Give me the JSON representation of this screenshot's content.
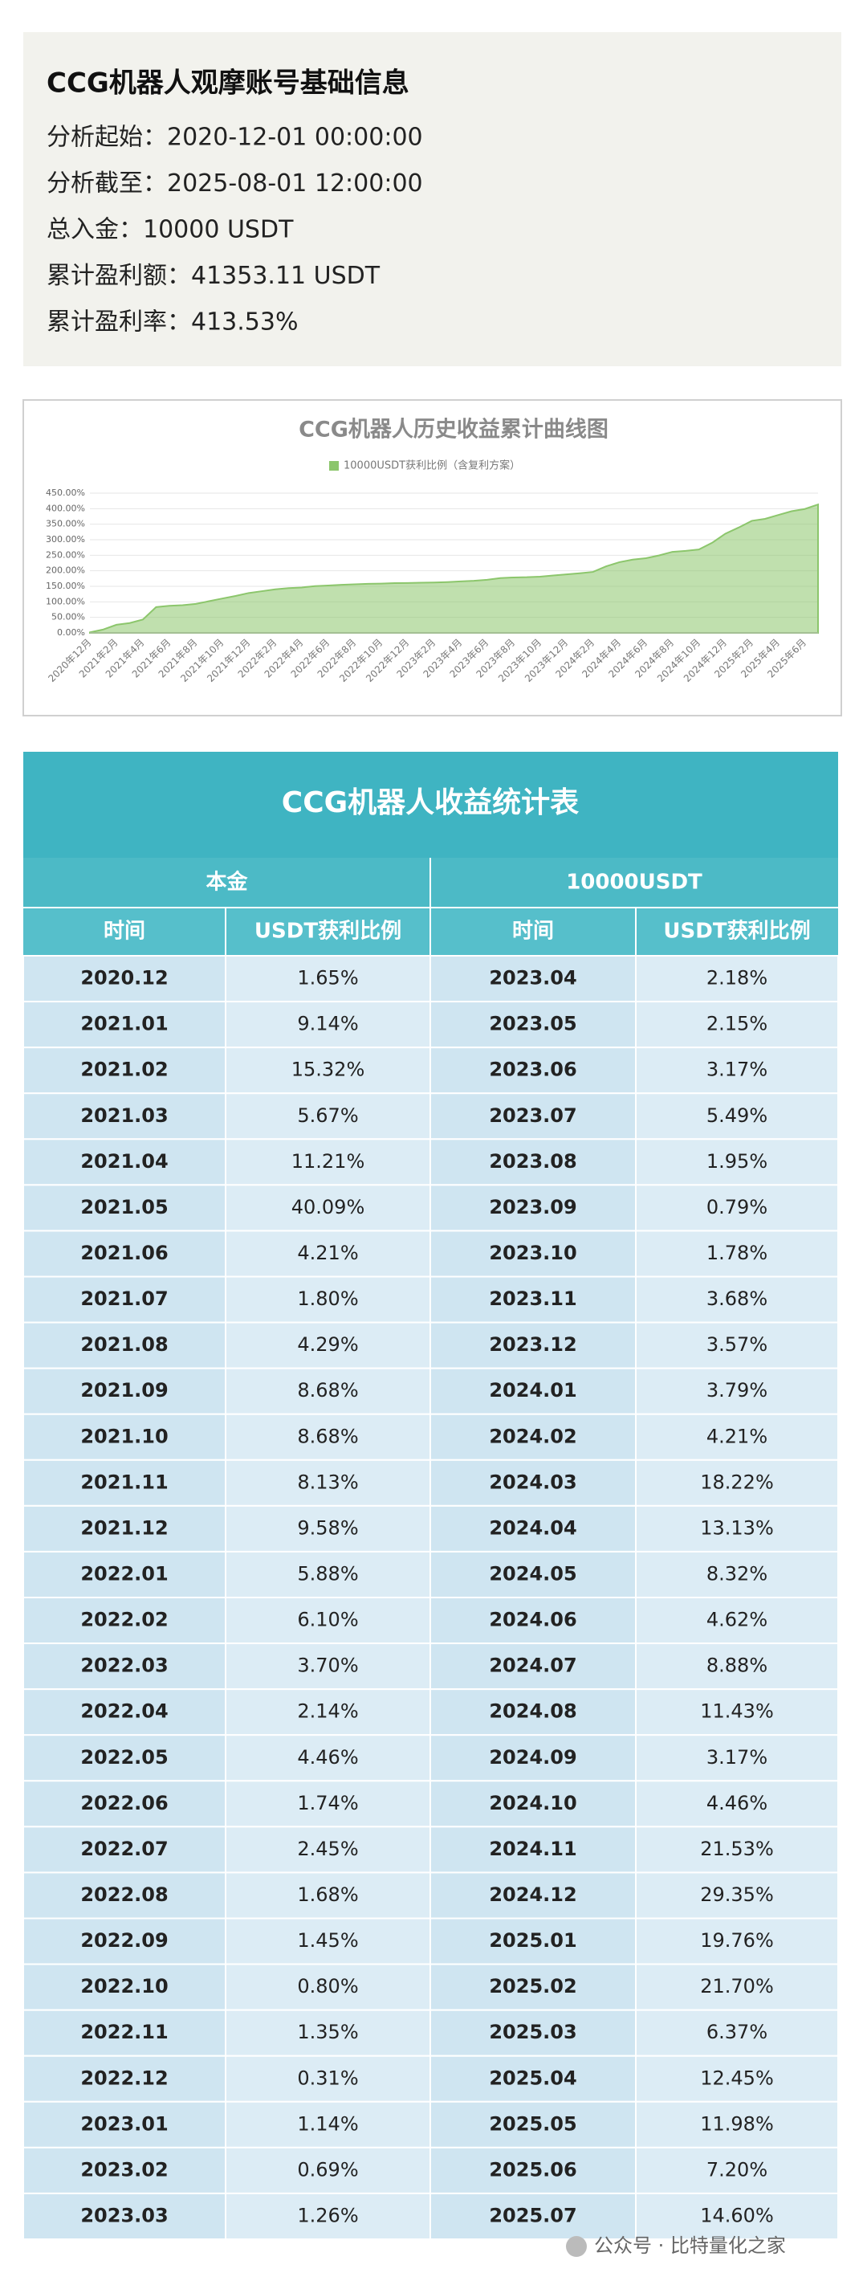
{
  "info": {
    "title": "CCG机器人观摩账号基础信息",
    "lines": [
      "分析起始：2020-12-01 00:00:00",
      "分析截至：2025-08-01 12:00:00",
      "总入金：10000 USDT",
      "累计盈利额：41353.11 USDT",
      "累计盈利率：413.53%"
    ]
  },
  "chart_data": {
    "type": "area",
    "title": "CCG机器人历史收益累计曲线图",
    "legend": "10000USDT获利比例（含复利方案）",
    "color": "#8cc66c",
    "categories": [
      "2020年12月",
      null,
      "2021年2月",
      null,
      "2021年4月",
      null,
      "2021年6月",
      null,
      "2021年8月",
      null,
      "2021年10月",
      null,
      "2021年12月",
      null,
      "2022年2月",
      null,
      "2022年4月",
      null,
      "2022年6月",
      null,
      "2022年8月",
      null,
      "2022年10月",
      null,
      "2022年12月",
      null,
      "2023年2月",
      null,
      "2023年4月",
      null,
      "2023年6月",
      null,
      "2023年8月",
      null,
      "2023年10月",
      null,
      "2023年12月",
      null,
      "2024年2月",
      null,
      "2024年4月",
      null,
      "2024年6月",
      null,
      "2024年8月",
      null,
      "2024年10月",
      null,
      "2024年12月",
      null,
      "2025年2月",
      null,
      "2025年4月",
      null,
      "2025年6月",
      null
    ],
    "values": [
      1.65,
      10.79,
      26.11,
      31.78,
      42.99,
      83.08,
      87.29,
      89.09,
      93.38,
      102.06,
      110.74,
      118.87,
      128.45,
      134.33,
      140.43,
      144.13,
      146.27,
      150.73,
      152.47,
      154.92,
      156.6,
      158.05,
      158.85,
      160.2,
      160.51,
      161.65,
      162.34,
      163.6,
      165.78,
      167.93,
      171.1,
      176.59,
      178.54,
      179.33,
      181.11,
      184.79,
      188.36,
      192.15,
      196.36,
      214.58,
      227.71,
      236.03,
      240.65,
      249.53,
      260.96,
      264.13,
      268.59,
      290.12,
      319.47,
      339.23,
      360.93,
      367.3,
      379.75,
      391.73,
      398.93,
      413.53
    ],
    "ylim": [
      0,
      450
    ],
    "yticks": [
      {
        "value": 0,
        "label": "0.00%"
      },
      {
        "value": 50,
        "label": "50.00%"
      },
      {
        "value": 100,
        "label": "100.00%"
      },
      {
        "value": 150,
        "label": "150.00%"
      },
      {
        "value": 200,
        "label": "200.00%"
      },
      {
        "value": 250,
        "label": "250.00%"
      },
      {
        "value": 300,
        "label": "300.00%"
      },
      {
        "value": 350,
        "label": "350.00%"
      },
      {
        "value": 400,
        "label": "400.00%"
      },
      {
        "value": 450,
        "label": "450.00%"
      }
    ],
    "grid": true
  },
  "table": {
    "title": "CCG机器人收益统计表",
    "groups": [
      "本金",
      "10000USDT"
    ],
    "headers": [
      "时间",
      "USDT获利比例",
      "时间",
      "USDT获利比例"
    ],
    "rows": [
      [
        "2020.12",
        "1.65%",
        "2023.04",
        "2.18%"
      ],
      [
        "2021.01",
        "9.14%",
        "2023.05",
        "2.15%"
      ],
      [
        "2021.02",
        "15.32%",
        "2023.06",
        "3.17%"
      ],
      [
        "2021.03",
        "5.67%",
        "2023.07",
        "5.49%"
      ],
      [
        "2021.04",
        "11.21%",
        "2023.08",
        "1.95%"
      ],
      [
        "2021.05",
        "40.09%",
        "2023.09",
        "0.79%"
      ],
      [
        "2021.06",
        "4.21%",
        "2023.10",
        "1.78%"
      ],
      [
        "2021.07",
        "1.80%",
        "2023.11",
        "3.68%"
      ],
      [
        "2021.08",
        "4.29%",
        "2023.12",
        "3.57%"
      ],
      [
        "2021.09",
        "8.68%",
        "2024.01",
        "3.79%"
      ],
      [
        "2021.10",
        "8.68%",
        "2024.02",
        "4.21%"
      ],
      [
        "2021.11",
        "8.13%",
        "2024.03",
        "18.22%"
      ],
      [
        "2021.12",
        "9.58%",
        "2024.04",
        "13.13%"
      ],
      [
        "2022.01",
        "5.88%",
        "2024.05",
        "8.32%"
      ],
      [
        "2022.02",
        "6.10%",
        "2024.06",
        "4.62%"
      ],
      [
        "2022.03",
        "3.70%",
        "2024.07",
        "8.88%"
      ],
      [
        "2022.04",
        "2.14%",
        "2024.08",
        "11.43%"
      ],
      [
        "2022.05",
        "4.46%",
        "2024.09",
        "3.17%"
      ],
      [
        "2022.06",
        "1.74%",
        "2024.10",
        "4.46%"
      ],
      [
        "2022.07",
        "2.45%",
        "2024.11",
        "21.53%"
      ],
      [
        "2022.08",
        "1.68%",
        "2024.12",
        "29.35%"
      ],
      [
        "2022.09",
        "1.45%",
        "2025.01",
        "19.76%"
      ],
      [
        "2022.10",
        "0.80%",
        "2025.02",
        "21.70%"
      ],
      [
        "2022.11",
        "1.35%",
        "2025.03",
        "6.37%"
      ],
      [
        "2022.12",
        "0.31%",
        "2025.04",
        "12.45%"
      ],
      [
        "2023.01",
        "1.14%",
        "2025.05",
        "11.98%"
      ],
      [
        "2023.02",
        "0.69%",
        "2025.06",
        "7.20%"
      ],
      [
        "2023.03",
        "1.26%",
        "2025.07",
        "14.60%"
      ]
    ]
  },
  "watermark": "公众号 · 比特量化之家"
}
